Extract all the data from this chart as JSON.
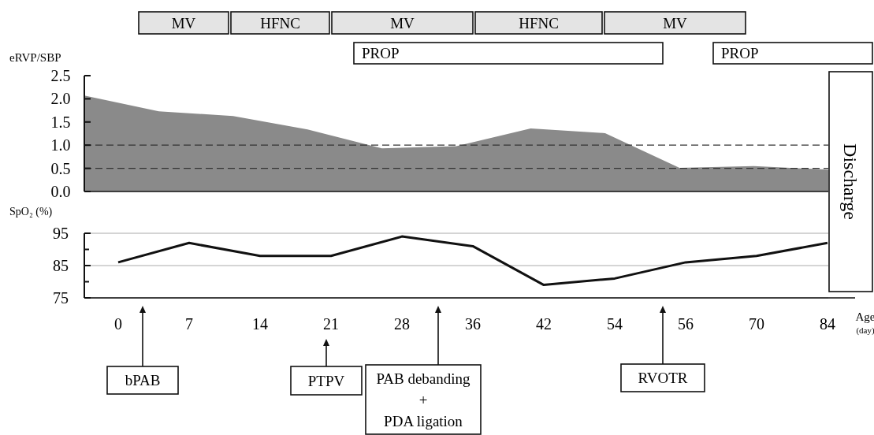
{
  "chart_data": [
    {
      "type": "area",
      "ylabel": "eRVP/SBP",
      "categories": [
        null,
        null,
        null,
        null,
        null,
        null,
        null,
        null,
        null,
        null,
        null
      ],
      "values": [
        2.07,
        1.73,
        1.63,
        1.34,
        0.93,
        0.98,
        1.36,
        1.26,
        0.51,
        0.55,
        0.47
      ],
      "color": "#8a8a8a",
      "ylim": [
        0,
        2.5
      ],
      "yticks": [
        {
          "value": 0,
          "label": "0.0"
        },
        {
          "value": 0.5,
          "label": "0.5"
        },
        {
          "value": 1,
          "label": "1.0"
        },
        {
          "value": 1.5,
          "label": "1.5"
        },
        {
          "value": 2,
          "label": "2.0"
        },
        {
          "value": 2.5,
          "label": "2.5"
        }
      ],
      "tick_labels": "y",
      "grid": false,
      "ref_lines": [
        {
          "axis": "y",
          "value": 1,
          "color": "#333333",
          "line_style": "dashed"
        },
        {
          "axis": "y",
          "value": 0.5,
          "color": "#333333",
          "line_style": "dashed"
        }
      ],
      "annotations": [
        "MV",
        "HFNC",
        "MV",
        "HFNC",
        "MV",
        "PROP",
        "PROP",
        "Discharge"
      ]
    },
    {
      "type": "line",
      "ylabel": "SpO₂ (%)",
      "xlabel": "Age (day)",
      "categories": [
        "0",
        "7",
        "14",
        "21",
        "28",
        "36",
        "42",
        "54",
        "56",
        "70",
        "84"
      ],
      "values": [
        86,
        92,
        88,
        88,
        94,
        91,
        79,
        81,
        86,
        88,
        92
      ],
      "color": "#111111",
      "ylim": [
        75,
        95
      ],
      "yticks": [
        95,
        {
          "value": 90,
          "label": null
        },
        85,
        {
          "value": 80,
          "label": null
        },
        75
      ],
      "grid": "y",
      "annotations": [
        "bPAB",
        "PTPV",
        "PAB debanding\n+\nPDA ligation",
        "RVOTR"
      ]
    }
  ]
}
